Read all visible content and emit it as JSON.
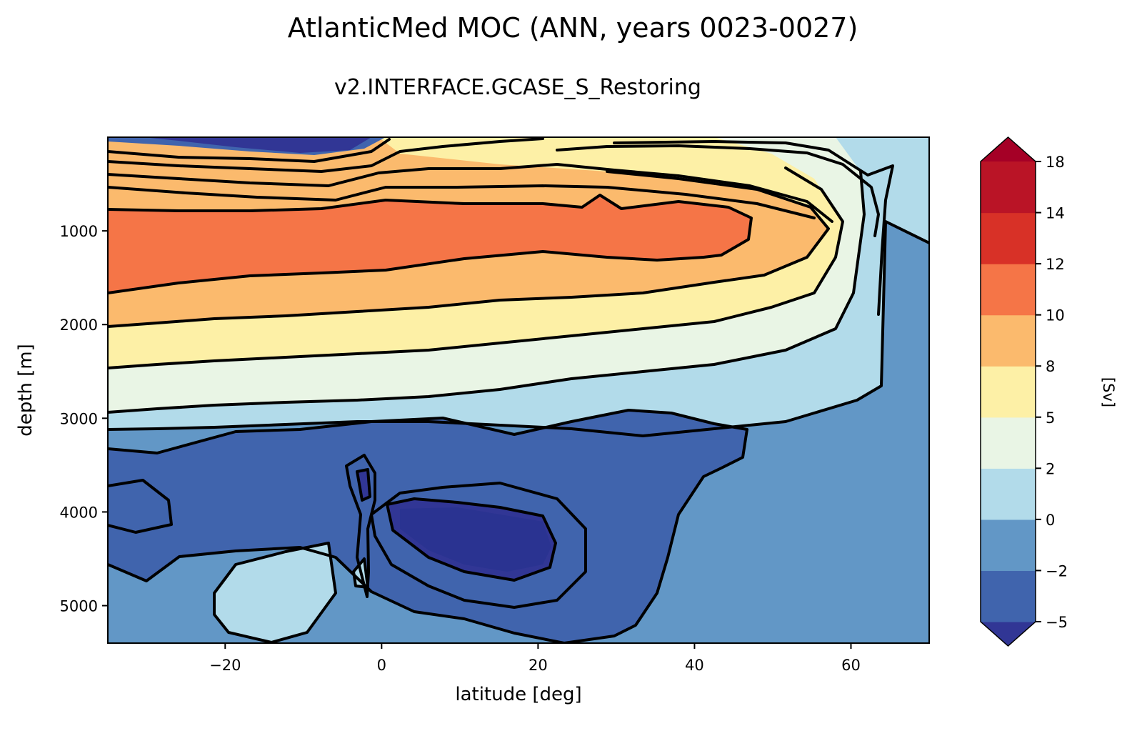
{
  "chart_data": {
    "type": "contourf",
    "title": "AtlanticMed MOC (ANN, years 0023-0027)",
    "subtitle": "v2.INTERFACE.GCASE_S_Restoring",
    "xlabel": "latitude [deg]",
    "ylabel": "depth [m]",
    "xlim": [
      -35,
      70
    ],
    "ylim": [
      5400,
      0
    ],
    "y_inverted": true,
    "x_ticks": [
      -20,
      0,
      20,
      40,
      60
    ],
    "x_tick_labels": [
      "−20",
      "0",
      "20",
      "40",
      "60"
    ],
    "y_ticks": [
      1000,
      2000,
      3000,
      4000,
      5000
    ],
    "y_tick_labels": [
      "1000",
      "2000",
      "3000",
      "4000",
      "5000"
    ],
    "colorbar": {
      "label": "[Sv]",
      "extend": "both",
      "levels": [
        -5,
        -2,
        0,
        2,
        5,
        8,
        10,
        12,
        14,
        18
      ],
      "level_labels": [
        "−5",
        "−2",
        "0",
        "2",
        "5",
        "8",
        "10",
        "12",
        "14",
        "18"
      ],
      "colors": [
        "#313695",
        "#4064ad",
        "#6297c6",
        "#b2dbea",
        "#e9f5e5",
        "#fdf0a6",
        "#fbba6d",
        "#f57547",
        "#d83127",
        "#ba1426",
        "#a50026"
      ]
    },
    "contour_lines": "black",
    "features": [
      {
        "name": "upper overturning cell maximum",
        "lat_range": [
          -35,
          48
        ],
        "depth_range": [
          800,
          1500
        ],
        "value_range": [
          10,
          12
        ]
      },
      {
        "name": "northern sinking region",
        "lat_range": [
          55,
          65
        ],
        "depth_range": [
          0,
          2200
        ],
        "value_range": [
          0,
          5
        ]
      },
      {
        "name": "abyssal cell",
        "lat_range": [
          -35,
          47
        ],
        "depth_range": [
          3000,
          5400
        ],
        "value_range": [
          -5,
          -2
        ]
      },
      {
        "name": "abyssal cell minimum",
        "lat_range": [
          1,
          22
        ],
        "depth_range": [
          3800,
          4700
        ],
        "value_range": [
          -6,
          -5
        ]
      },
      {
        "name": "surface negative cell",
        "lat_range": [
          -35,
          0
        ],
        "depth_range": [
          0,
          120
        ],
        "value_range": [
          -6,
          -2
        ]
      }
    ]
  }
}
